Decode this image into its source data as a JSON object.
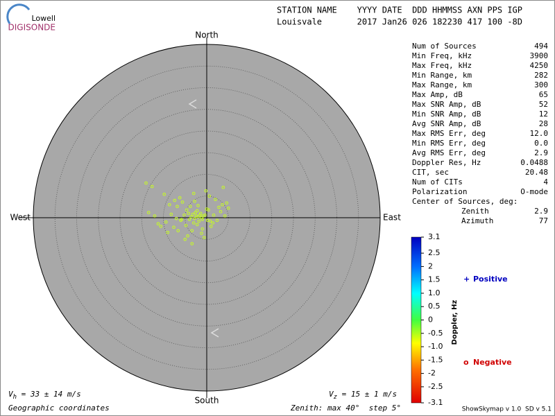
{
  "logo": {
    "top": "Lowell",
    "bottom": "DIGISONDE"
  },
  "header": {
    "line1": "STATION NAME    YYYY DATE  DDD HHMMSS AXN PPS IGP",
    "line2": "Louisvale       2017 Jan26 026 182230 417 100 -8D"
  },
  "stats": {
    "rows": [
      [
        "Num of Sources",
        "494"
      ],
      [
        "Min Freq, kHz",
        "3900"
      ],
      [
        "Max Freq, kHz",
        "4250"
      ],
      [
        "Min Range, km",
        "282"
      ],
      [
        "Max Range, km",
        "300"
      ],
      [
        "Max Amp, dB",
        "65"
      ],
      [
        "Max SNR Amp, dB",
        "52"
      ],
      [
        "Min SNR Amp, dB",
        "12"
      ],
      [
        "Avg SNR Amp, dB",
        "28"
      ],
      [
        "Max RMS Err, deg",
        "12.0"
      ],
      [
        "Min RMS Err, deg",
        "0.0"
      ],
      [
        "Avg RMS Err, deg",
        "2.9"
      ],
      [
        "Doppler Res, Hz",
        "0.0488"
      ],
      [
        "CIT, sec",
        "20.48"
      ],
      [
        "Num of CITs",
        "4"
      ],
      [
        "Polarization",
        "O-mode"
      ]
    ],
    "center_title": "Center of Sources, deg:",
    "center_rows": [
      [
        "Zenith",
        "2.9"
      ],
      [
        "Azimuth",
        "77"
      ]
    ]
  },
  "chart_data": {
    "type": "skymap",
    "directions": {
      "north": "North",
      "south": "South",
      "west": "West",
      "east": "East"
    },
    "rlim": [
      0,
      40
    ],
    "rticks": [
      5,
      10,
      15,
      20,
      25,
      30,
      35
    ],
    "points": {
      "color": "#c8ff1e",
      "x": [
        -2.4,
        -2.0,
        -1.6,
        -2.8,
        -3.2,
        -1.2,
        -0.8,
        -2.6,
        -3.6,
        -4.0,
        -1.8,
        -2.2,
        -3.0,
        -1.4,
        -0.4,
        0.2,
        -4.6,
        -5.2,
        -6.0,
        -7.0,
        -8.2,
        -9.4,
        -10.6,
        -12.0,
        -13.4,
        -4.8,
        -3.4,
        -1.0,
        0.8,
        1.6,
        2.4,
        3.2,
        4.2,
        5.0,
        4.6,
        3.6,
        2.0,
        0.6,
        -0.2,
        -5.6,
        -6.8,
        -7.6,
        -9.0,
        -11.2,
        -3.8,
        -2.8,
        -4.4,
        -5.0,
        -1.2,
        -0.6,
        1.0,
        2.8,
        -8.6,
        -6.2,
        -3.0,
        -2.2,
        0.4,
        1.4,
        -14.0,
        -12.6,
        -4.2,
        -5.8,
        -2.0,
        -1.0,
        0.0,
        3.8,
        -7.4,
        -9.8,
        -6.6,
        -3.4
      ],
      "y": [
        0.4,
        0.2,
        0.6,
        -0.2,
        0.8,
        0.0,
        0.4,
        1.2,
        0.2,
        -0.4,
        -0.8,
        1.6,
        -1.2,
        1.0,
        0.6,
        -0.6,
        1.8,
        0.6,
        -0.6,
        -0.2,
        0.8,
        -1.0,
        -2.0,
        0.4,
        1.2,
        -1.8,
        -3.0,
        -2.6,
        -0.8,
        0.6,
        -0.6,
        1.4,
        0.4,
        2.2,
        3.4,
        3.0,
        4.2,
        5.0,
        6.2,
        3.6,
        2.6,
        -2.2,
        -3.4,
        -1.4,
        2.6,
        3.8,
        -4.2,
        -5.0,
        -3.6,
        -4.6,
        -2.0,
        2.4,
        3.0,
        4.6,
        5.6,
        -1.6,
        1.8,
        -1.2,
        8.0,
        7.2,
        1.0,
        -0.4,
        2.8,
        -0.4,
        2.0,
        7.0,
        4.0,
        5.4,
        -3.0,
        -6.0
      ]
    }
  },
  "colorbar": {
    "label": "Doppler, Hz",
    "lim": [
      -3.1,
      3.1
    ],
    "ticks": [
      3.1,
      2.5,
      2,
      1.5,
      {
        "value": 1,
        "label": "1.0"
      },
      0.5,
      0,
      -0.5,
      {
        "value": -1,
        "label": "-1.0"
      },
      -1.5,
      -2,
      -2.5,
      -3.1
    ]
  },
  "legend": {
    "positive": {
      "symbol": "+",
      "label": "Positive"
    },
    "negative": {
      "symbol": "o",
      "label": "Negative"
    }
  },
  "velocity_h": {
    "symbol": "V",
    "subscript": "h",
    "text": " = 33 ± 14 m/s"
  },
  "velocity_z": {
    "symbol": "V",
    "subscript": "z",
    "text": " = 15 ± 1 m/s"
  },
  "footer": {
    "coords": "Geographic coordinates",
    "zenith": "Zenith: max 40°  step 5°",
    "version": "ShowSkymap v 1.0  SD v 5.1"
  }
}
